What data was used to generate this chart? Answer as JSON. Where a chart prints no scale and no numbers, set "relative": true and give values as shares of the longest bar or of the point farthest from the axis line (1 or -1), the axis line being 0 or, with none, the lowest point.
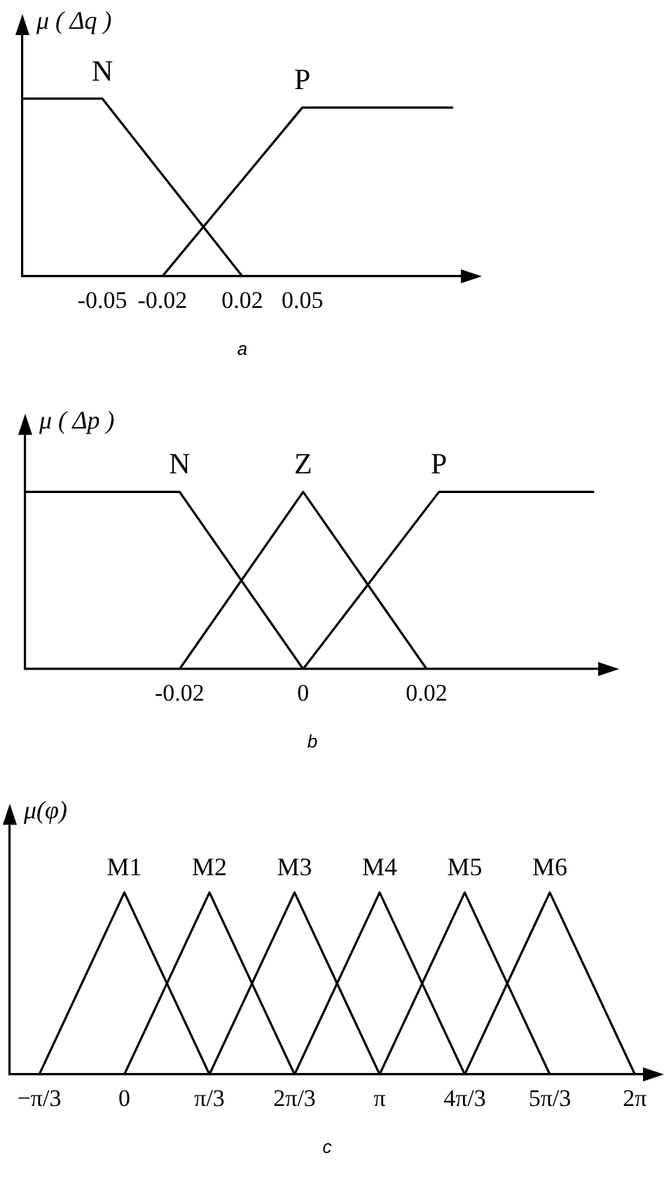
{
  "chart_data": [
    {
      "type": "line",
      "title": "a",
      "ylabel": "μ ( Δq )",
      "relative": true,
      "marker": "none",
      "line_style": "solid",
      "xlim": [
        -0.09,
        0.13
      ],
      "xticks": [
        -0.05,
        -0.02,
        0.02,
        0.05
      ],
      "series": [
        {
          "name": "N",
          "color": "#000000",
          "x": [
            -0.09,
            -0.05,
            0.02
          ],
          "values": [
            1,
            1,
            0
          ]
        },
        {
          "name": "P",
          "color": "#000000",
          "x": [
            -0.02,
            0.05,
            0.125
          ],
          "values": [
            0,
            0.95,
            0.95
          ]
        }
      ]
    },
    {
      "type": "line",
      "title": "b",
      "ylabel": "μ ( Δp )",
      "relative": true,
      "marker": "none",
      "line_style": "solid",
      "xlim": [
        -0.045,
        0.048
      ],
      "xticks": [
        -0.02,
        0,
        0.02
      ],
      "series": [
        {
          "name": "N",
          "color": "#000000",
          "x": [
            -0.045,
            -0.02,
            0
          ],
          "values": [
            1,
            1,
            0
          ]
        },
        {
          "name": "Z",
          "color": "#000000",
          "x": [
            -0.02,
            0,
            0.02
          ],
          "values": [
            0,
            1,
            0
          ]
        },
        {
          "name": "P",
          "color": "#000000",
          "x": [
            0,
            0.022,
            0.047
          ],
          "values": [
            0,
            1,
            1
          ]
        }
      ]
    },
    {
      "type": "line",
      "title": "c",
      "ylabel": "μ(φ)",
      "relative": true,
      "marker": "none",
      "line_style": "solid",
      "xlim": [
        -1.41,
        6.4
      ],
      "xticks": [
        {
          "value": -1.0472,
          "label": "−π/3"
        },
        0,
        {
          "value": 1.0472,
          "label": "π/3"
        },
        {
          "value": 2.0944,
          "label": "2π/3"
        },
        {
          "value": 3.1416,
          "label": "π"
        },
        {
          "value": 4.1888,
          "label": "4π/3"
        },
        {
          "value": 5.236,
          "label": "5π/3"
        },
        {
          "value": 6.2832,
          "label": "2π"
        }
      ],
      "series": [
        {
          "name": "M1",
          "color": "#000000",
          "x": [
            -1.0472,
            0,
            1.0472
          ],
          "values": [
            0,
            1,
            0
          ]
        },
        {
          "name": "M2",
          "color": "#000000",
          "x": [
            0,
            1.0472,
            2.0944
          ],
          "values": [
            0,
            1,
            0
          ]
        },
        {
          "name": "M3",
          "color": "#000000",
          "x": [
            1.0472,
            2.0944,
            3.1416
          ],
          "values": [
            0,
            1,
            0
          ]
        },
        {
          "name": "M4",
          "color": "#000000",
          "x": [
            2.0944,
            3.1416,
            4.1888
          ],
          "values": [
            0,
            1,
            0
          ]
        },
        {
          "name": "M5",
          "color": "#000000",
          "x": [
            3.1416,
            4.1888,
            5.236
          ],
          "values": [
            0,
            1,
            0
          ]
        },
        {
          "name": "M6",
          "color": "#000000",
          "x": [
            4.1888,
            5.236,
            6.2832
          ],
          "values": [
            0,
            1,
            0
          ]
        }
      ]
    }
  ]
}
